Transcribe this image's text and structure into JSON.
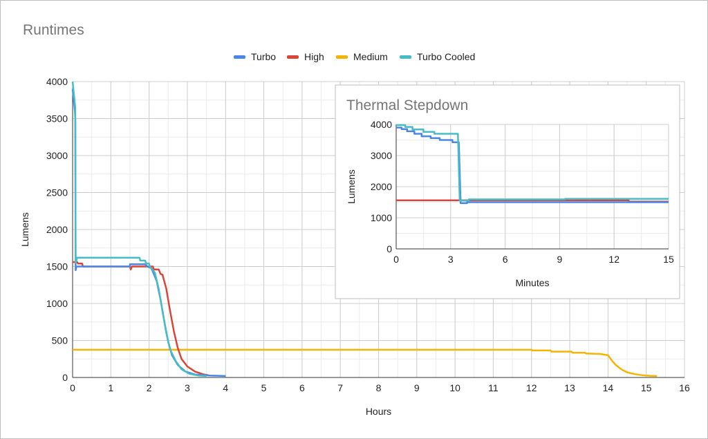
{
  "chart_data": [
    {
      "type": "line",
      "title": "Runtimes",
      "xlabel": "Hours",
      "ylabel": "Lumens",
      "xlim": [
        0,
        16
      ],
      "ylim": [
        0,
        4000
      ],
      "x_ticks": [
        "0",
        "1",
        "2",
        "3",
        "4",
        "5",
        "6",
        "7",
        "8",
        "9",
        "10",
        "11",
        "12",
        "13",
        "14",
        "15",
        "16"
      ],
      "y_ticks": [
        "0",
        "500",
        "1000",
        "1500",
        "2000",
        "2500",
        "3000",
        "3500",
        "4000"
      ],
      "legend": [
        {
          "name": "Turbo",
          "color": "#4a86e8"
        },
        {
          "name": "High",
          "color": "#db4437"
        },
        {
          "name": "Medium",
          "color": "#f4b400"
        },
        {
          "name": "Turbo Cooled",
          "color": "#46bdc6"
        }
      ],
      "series": [
        {
          "name": "Medium",
          "color": "#f4b400",
          "points": [
            [
              0,
              375
            ],
            [
              12,
              375
            ],
            [
              12.02,
              365
            ],
            [
              12.5,
              365
            ],
            [
              12.52,
              350
            ],
            [
              13.05,
              350
            ],
            [
              13.07,
              335
            ],
            [
              13.4,
              335
            ],
            [
              13.42,
              325
            ],
            [
              13.8,
              318
            ],
            [
              14,
              300
            ],
            [
              14.1,
              230
            ],
            [
              14.2,
              170
            ],
            [
              14.35,
              110
            ],
            [
              14.5,
              70
            ],
            [
              14.7,
              45
            ],
            [
              14.9,
              30
            ],
            [
              15.1,
              22
            ],
            [
              15.28,
              20
            ]
          ]
        },
        {
          "name": "High",
          "color": "#db4437",
          "points": [
            [
              0,
              1560
            ],
            [
              0.12,
              1560
            ],
            [
              0.14,
              1540
            ],
            [
              0.25,
              1540
            ],
            [
              0.27,
              1500
            ],
            [
              1.5,
              1500
            ],
            [
              1.52,
              1460
            ],
            [
              1.55,
              1500
            ],
            [
              2.1,
              1500
            ],
            [
              2.12,
              1460
            ],
            [
              2.25,
              1460
            ],
            [
              2.3,
              1400
            ],
            [
              2.35,
              1390
            ],
            [
              2.45,
              1200
            ],
            [
              2.55,
              900
            ],
            [
              2.65,
              620
            ],
            [
              2.75,
              400
            ],
            [
              2.85,
              250
            ],
            [
              3,
              150
            ],
            [
              3.2,
              80
            ],
            [
              3.4,
              45
            ],
            [
              3.55,
              30
            ]
          ]
        },
        {
          "name": "Turbo",
          "color": "#4a86e8",
          "points": [
            [
              0,
              3900
            ],
            [
              0.02,
              3800
            ],
            [
              0.04,
              3700
            ],
            [
              0.06,
              3600
            ],
            [
              0.07,
              3500
            ],
            [
              0.08,
              1450
            ],
            [
              0.1,
              1500
            ],
            [
              0.35,
              1500
            ],
            [
              1.5,
              1500
            ],
            [
              1.5,
              1530
            ],
            [
              1.9,
              1530
            ],
            [
              1.95,
              1500
            ],
            [
              2.05,
              1480
            ],
            [
              2.1,
              1430
            ],
            [
              2.2,
              1300
            ],
            [
              2.3,
              1050
            ],
            [
              2.4,
              750
            ],
            [
              2.5,
              480
            ],
            [
              2.6,
              300
            ],
            [
              2.75,
              170
            ],
            [
              2.95,
              80
            ],
            [
              3.2,
              40
            ],
            [
              3.6,
              25
            ],
            [
              4,
              20
            ]
          ]
        },
        {
          "name": "Turbo Cooled",
          "color": "#46bdc6",
          "points": [
            [
              0,
              4000
            ],
            [
              0.02,
              3900
            ],
            [
              0.04,
              3800
            ],
            [
              0.06,
              3700
            ],
            [
              0.07,
              3640
            ],
            [
              0.08,
              1550
            ],
            [
              0.1,
              1580
            ],
            [
              0.12,
              1620
            ],
            [
              1.75,
              1620
            ],
            [
              1.77,
              1580
            ],
            [
              1.9,
              1580
            ],
            [
              1.92,
              1540
            ],
            [
              2.0,
              1540
            ],
            [
              2.02,
              1500
            ],
            [
              2.15,
              1420
            ],
            [
              2.25,
              1200
            ],
            [
              2.35,
              900
            ],
            [
              2.45,
              600
            ],
            [
              2.55,
              380
            ],
            [
              2.7,
              220
            ],
            [
              2.85,
              110
            ],
            [
              3.05,
              50
            ],
            [
              3.3,
              25
            ],
            [
              3.5,
              20
            ]
          ]
        }
      ]
    },
    {
      "type": "line",
      "title": "Thermal Stepdown",
      "xlabel": "Minutes",
      "ylabel": "Lumens",
      "xlim": [
        0,
        15
      ],
      "ylim": [
        0,
        4000
      ],
      "x_ticks": [
        "0",
        "3",
        "6",
        "9",
        "12",
        "15"
      ],
      "y_ticks": [
        "0",
        "1000",
        "2000",
        "3000",
        "4000"
      ],
      "series": [
        {
          "name": "High",
          "color": "#db4437",
          "points": [
            [
              0,
              1560
            ],
            [
              3.6,
              1560
            ],
            [
              12.8,
              1560
            ],
            [
              12.8,
              1520
            ],
            [
              15,
              1520
            ]
          ]
        },
        {
          "name": "Turbo",
          "color": "#4a86e8",
          "points": [
            [
              0,
              3900
            ],
            [
              0.3,
              3900
            ],
            [
              0.3,
              3850
            ],
            [
              0.6,
              3850
            ],
            [
              0.6,
              3780
            ],
            [
              1,
              3780
            ],
            [
              1,
              3700
            ],
            [
              1.4,
              3700
            ],
            [
              1.4,
              3620
            ],
            [
              1.9,
              3620
            ],
            [
              1.9,
              3560
            ],
            [
              2.4,
              3560
            ],
            [
              2.4,
              3500
            ],
            [
              3.1,
              3500
            ],
            [
              3.1,
              3430
            ],
            [
              3.45,
              3430
            ],
            [
              3.55,
              1470
            ],
            [
              3.9,
              1470
            ],
            [
              3.9,
              1500
            ],
            [
              15,
              1500
            ]
          ]
        },
        {
          "name": "Turbo Cooled",
          "color": "#46bdc6",
          "points": [
            [
              0,
              3980
            ],
            [
              0.5,
              3980
            ],
            [
              0.5,
              3920
            ],
            [
              0.9,
              3920
            ],
            [
              0.9,
              3840
            ],
            [
              1.5,
              3840
            ],
            [
              1.5,
              3760
            ],
            [
              2.1,
              3760
            ],
            [
              2.1,
              3700
            ],
            [
              3.4,
              3700
            ],
            [
              3.5,
              1550
            ],
            [
              4,
              1550
            ],
            [
              4,
              1590
            ],
            [
              9.3,
              1590
            ],
            [
              9.3,
              1610
            ],
            [
              15,
              1610
            ]
          ]
        }
      ]
    }
  ]
}
